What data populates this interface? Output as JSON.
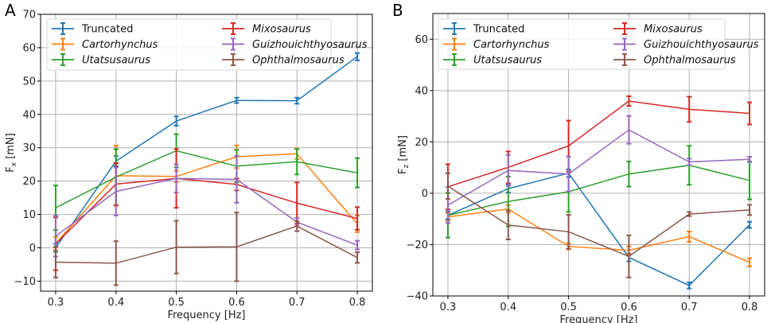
{
  "chart_data": [
    {
      "panel": "A",
      "type": "line",
      "title": "",
      "xlabel": "Frequency [Hz]",
      "ylabel": "F_x [mN]",
      "ylabel_main": "F",
      "ylabel_sub": "x",
      "ylabel_unit": " [mN]",
      "xlim": [
        0.275,
        0.825
      ],
      "ylim": [
        -13,
        70
      ],
      "xticks": [
        0.3,
        0.4,
        0.5,
        0.6,
        0.7,
        0.8
      ],
      "xtick_labels": [
        "0.3",
        "0.4",
        "0.5",
        "0.6",
        "0.7",
        "0.8"
      ],
      "yticks": [
        -10,
        0,
        10,
        20,
        30,
        40,
        50,
        60,
        70
      ],
      "ytick_labels": [
        "−10",
        "0",
        "10",
        "20",
        "30",
        "40",
        "50",
        "60",
        "70"
      ],
      "grid": true,
      "legend_position": "top-left",
      "x": [
        0.3,
        0.4,
        0.5,
        0.6,
        0.7,
        0.8
      ],
      "series": [
        {
          "name": "Truncated",
          "italic": false,
          "color": "#1f77b4",
          "values": [
            0.0,
            26.0,
            38.0,
            44.2,
            44.1,
            57.3
          ],
          "errors": [
            1.2,
            1.5,
            1.4,
            0.8,
            0.9,
            1.1
          ]
        },
        {
          "name": "Cartorhynchus",
          "italic": true,
          "color": "#ff7f0e",
          "values": [
            1.3,
            21.6,
            21.4,
            27.3,
            28.2,
            7.2
          ],
          "errors": [
            2.0,
            9.0,
            1.7,
            3.4,
            1.6,
            2.5
          ]
        },
        {
          "name": "Utatsusaurus",
          "italic": true,
          "color": "#2ca02c",
          "values": [
            12.0,
            21.2,
            29.1,
            24.5,
            25.8,
            22.5
          ],
          "errors": [
            6.7,
            8.4,
            5.0,
            4.9,
            3.8,
            4.4
          ]
        },
        {
          "name": "Mixosaurus",
          "italic": true,
          "color": "#d62728",
          "values": [
            1.2,
            19.1,
            20.8,
            19.0,
            13.4,
            8.8
          ],
          "errors": [
            7.9,
            6.3,
            8.8,
            1.8,
            6.2,
            3.4
          ]
        },
        {
          "name": "Guizhouichthyosaurus",
          "italic": true,
          "color": "#9467bd",
          "values": [
            3.5,
            16.9,
            20.8,
            20.5,
            7.7,
            0.8
          ],
          "errors": [
            6.1,
            7.2,
            4.2,
            7.0,
            1.2,
            1.3
          ]
        },
        {
          "name": "Ophthalmosaurus",
          "italic": true,
          "color": "#8c564b",
          "values": [
            -4.3,
            -4.6,
            0.2,
            0.3,
            6.5,
            -2.9
          ],
          "errors": [
            4.6,
            6.6,
            7.9,
            10.3,
            1.5,
            1.6
          ]
        }
      ]
    },
    {
      "panel": "B",
      "type": "line",
      "title": "",
      "xlabel": "Frequency [Hz]",
      "ylabel": "F_z [mN]",
      "ylabel_main": "F",
      "ylabel_sub": "z",
      "ylabel_unit": " [mN]",
      "xlim": [
        0.275,
        0.825
      ],
      "ylim": [
        -40,
        70
      ],
      "xticks": [
        0.3,
        0.4,
        0.5,
        0.6,
        0.7,
        0.8
      ],
      "xtick_labels": [
        "0.3",
        "0.4",
        "0.5",
        "0.6",
        "0.7",
        "0.8"
      ],
      "yticks": [
        -40,
        -20,
        0,
        20,
        40,
        60
      ],
      "ytick_labels": [
        "−40",
        "−20",
        "0",
        "20",
        "40",
        "60"
      ],
      "grid": true,
      "legend_position": "top-left",
      "x": [
        0.3,
        0.4,
        0.5,
        0.6,
        0.7,
        0.8
      ],
      "series": [
        {
          "name": "Truncated",
          "italic": false,
          "color": "#1f77b4",
          "values": [
            -8.6,
            1.8,
            7.8,
            -25.0,
            -35.9,
            -12.3
          ],
          "errors": [
            1.5,
            1.5,
            1.5,
            1.5,
            1.2,
            1.2
          ]
        },
        {
          "name": "Cartorhynchus",
          "italic": true,
          "color": "#ff7f0e",
          "values": [
            -9.2,
            -6.1,
            -20.7,
            -22.2,
            -16.9,
            -26.9
          ],
          "errors": [
            1.5,
            1.5,
            1.2,
            1.5,
            2.0,
            1.6
          ]
        },
        {
          "name": "Utatsusaurus",
          "italic": true,
          "color": "#2ca02c",
          "values": [
            -8.6,
            -3.2,
            0.6,
            7.5,
            10.9,
            5.0
          ],
          "errors": [
            8.7,
            9.7,
            7.9,
            4.9,
            7.6,
            7.4
          ]
        },
        {
          "name": "Mixosaurus",
          "italic": true,
          "color": "#d62728",
          "values": [
            2.5,
            10.1,
            18.4,
            35.9,
            32.7,
            31.1
          ],
          "errors": [
            8.8,
            6.2,
            9.9,
            1.9,
            4.9,
            4.3
          ]
        },
        {
          "name": "Guizhouichthyosaurus",
          "italic": true,
          "color": "#9467bd",
          "values": [
            -4.6,
            8.9,
            7.5,
            24.7,
            12.2,
            13.2
          ],
          "errors": [
            7.0,
            6.0,
            6.8,
            5.4,
            1.3,
            1.0
          ]
        },
        {
          "name": "Ophthalmosaurus",
          "italic": true,
          "color": "#8c564b",
          "values": [
            2.8,
            -12.4,
            -15.0,
            -24.6,
            -8.1,
            -6.5
          ],
          "errors": [
            5.0,
            5.6,
            6.6,
            8.2,
            0.8,
            2.0
          ]
        }
      ]
    }
  ]
}
